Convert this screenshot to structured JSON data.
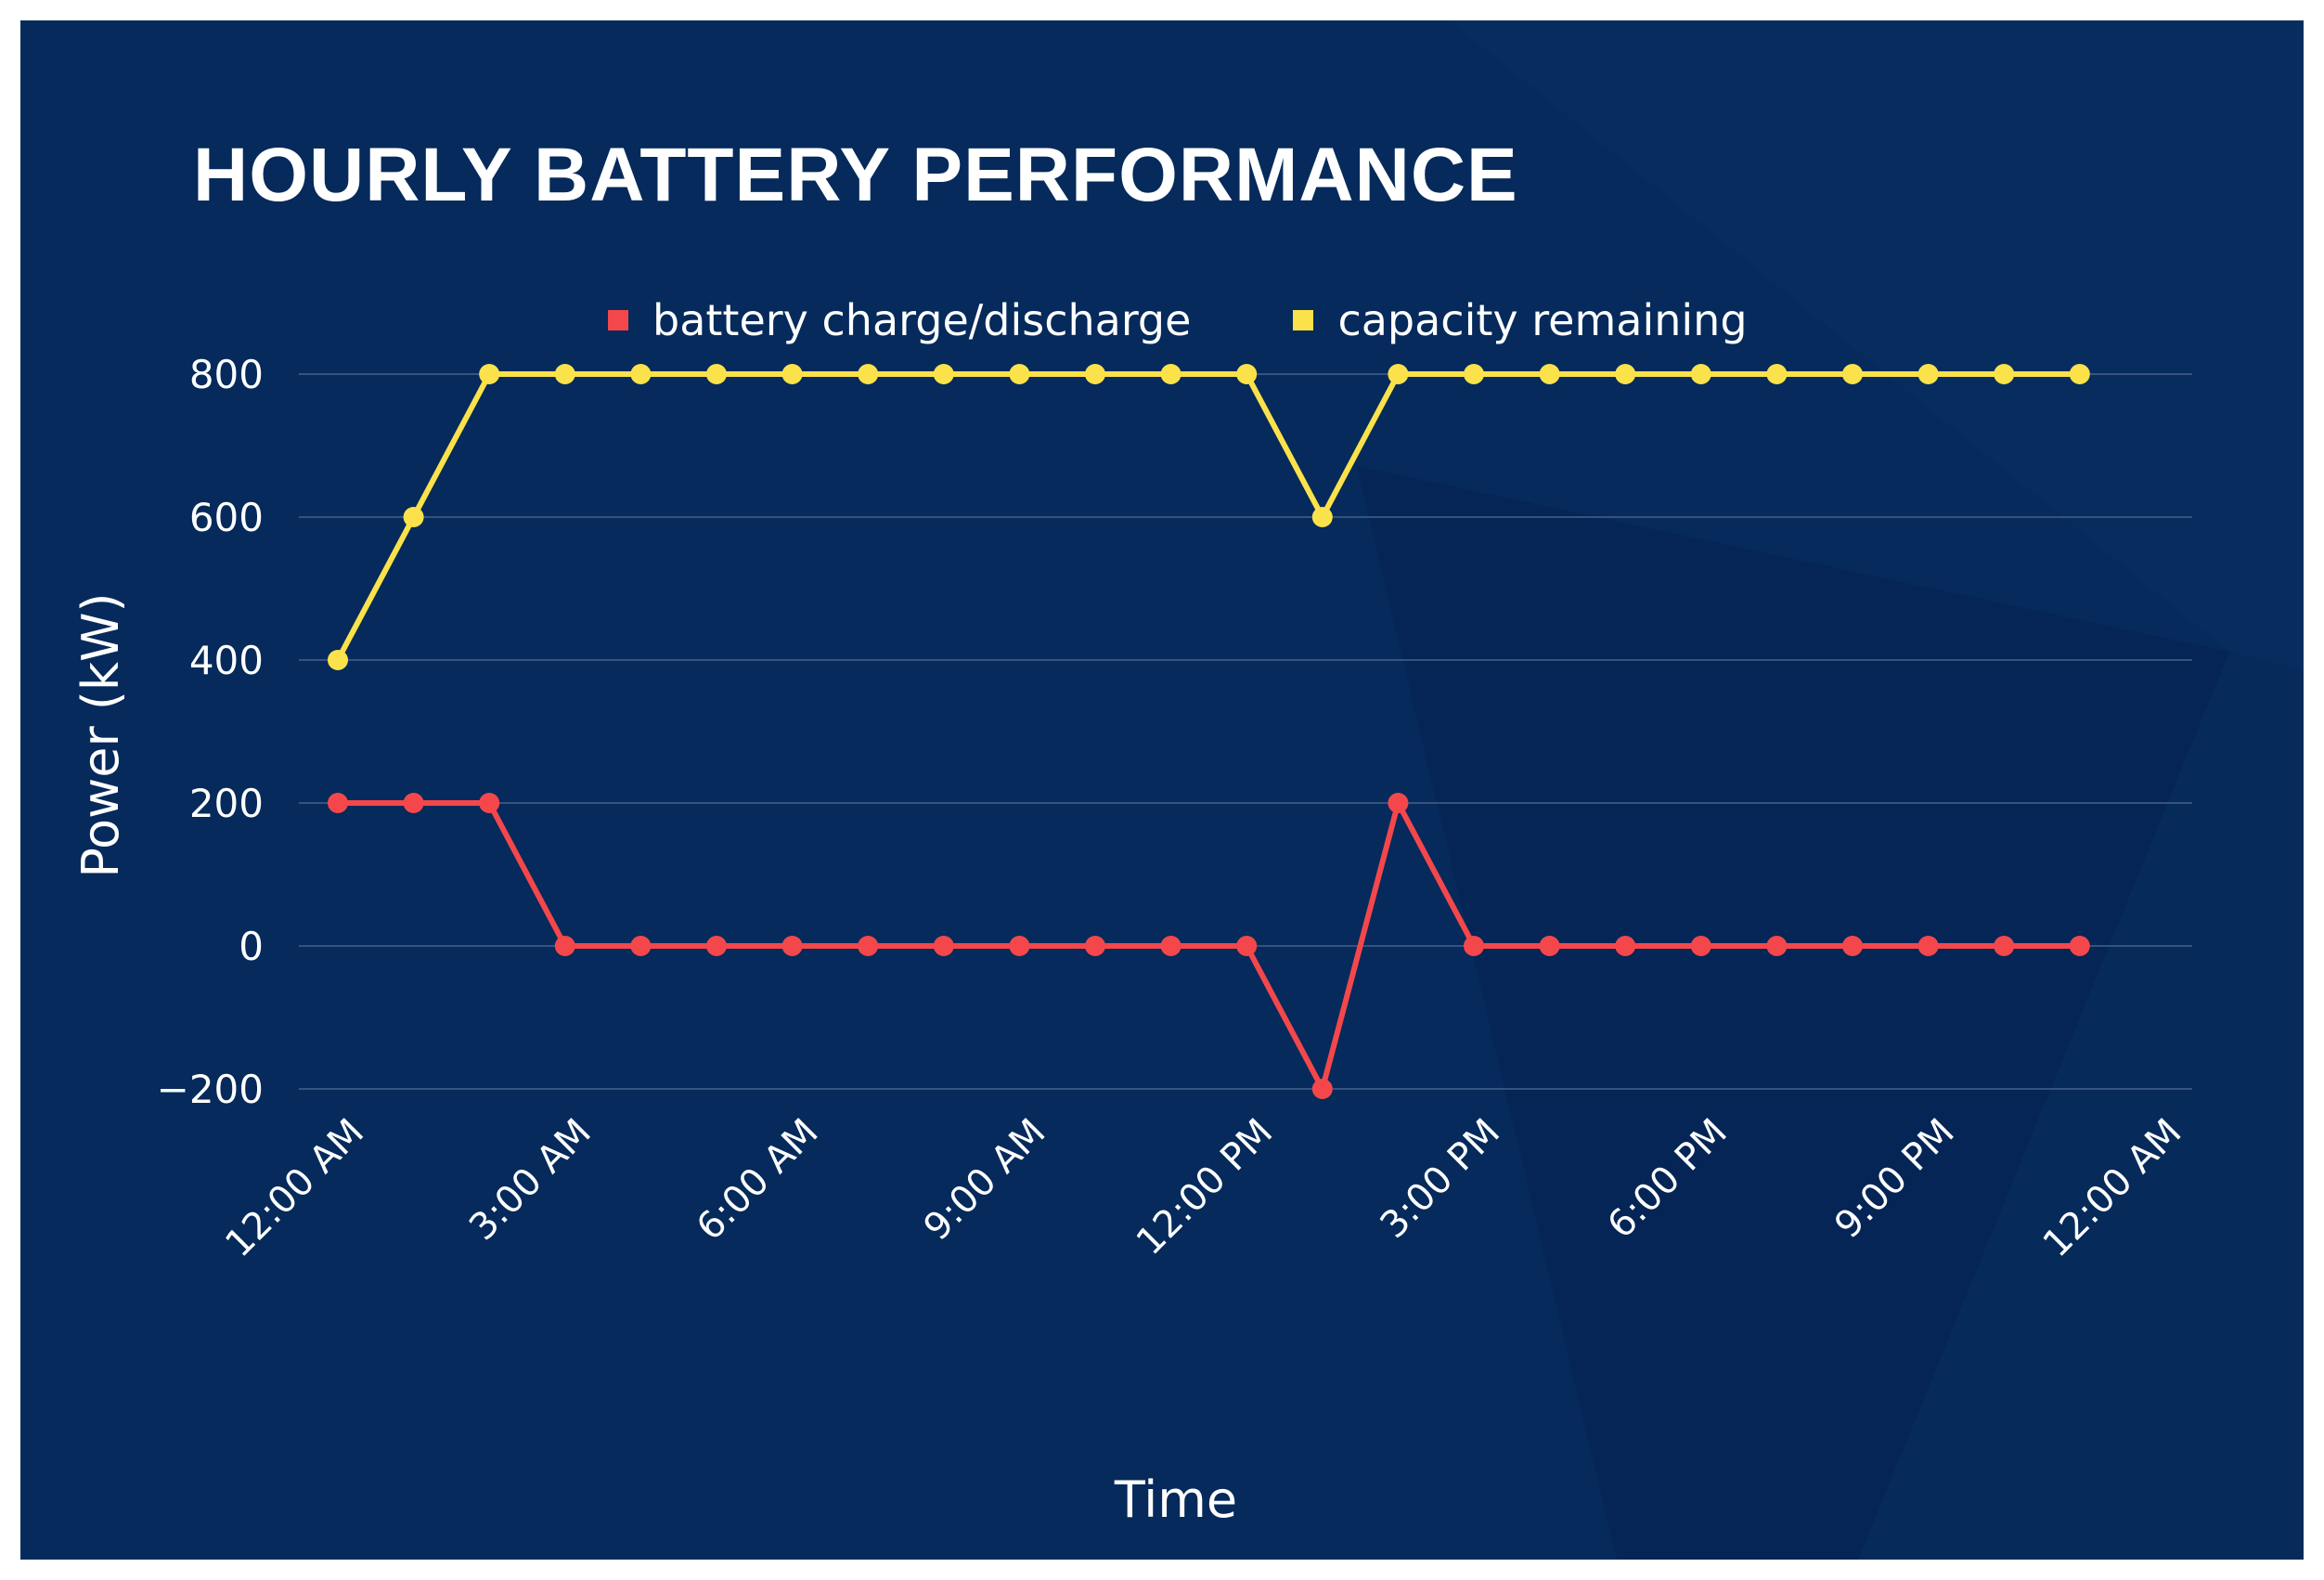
{
  "title": "HOURLY BATTERY PERFORMANCE",
  "legend": {
    "position": "top-center",
    "items": [
      {
        "label": "battery charge/discharge",
        "color": "#f4474b"
      },
      {
        "label": "capacity remaining",
        "color": "#fbe24a"
      }
    ]
  },
  "colors": {
    "background": "#052a5b",
    "gridline": "#35537e",
    "text": "#ffffff"
  },
  "chart_data": {
    "type": "line",
    "title": "HOURLY BATTERY PERFORMANCE",
    "xlabel": "Time",
    "ylabel": "Power (kW)",
    "ylim": [
      -200,
      800
    ],
    "yticks": [
      -200,
      0,
      200,
      400,
      600,
      800
    ],
    "xtick_labels": [
      "12:00 AM",
      "3:00 AM",
      "6:00 AM",
      "9:00 AM",
      "12:00 PM",
      "3:00 PM",
      "6:00 PM",
      "9:00 PM",
      "12:00 AM"
    ],
    "xtick_hours": [
      0,
      3,
      6,
      9,
      12,
      15,
      18,
      21,
      24
    ],
    "grid": true,
    "x_hours": [
      0,
      1,
      2,
      3,
      4,
      5,
      6,
      7,
      8,
      9,
      10,
      11,
      12,
      13,
      14,
      15,
      16,
      17,
      18,
      19,
      20,
      21,
      22,
      23
    ],
    "series": [
      {
        "name": "battery charge/discharge",
        "color": "#f4474b",
        "values": [
          200,
          200,
          200,
          0,
          0,
          0,
          0,
          0,
          0,
          0,
          0,
          0,
          0,
          -200,
          200,
          0,
          0,
          0,
          0,
          0,
          0,
          0,
          0,
          0
        ]
      },
      {
        "name": "capacity remaining",
        "color": "#fbe24a",
        "values": [
          400,
          600,
          800,
          800,
          800,
          800,
          800,
          800,
          800,
          800,
          800,
          800,
          800,
          600,
          800,
          800,
          800,
          800,
          800,
          800,
          800,
          800,
          800,
          800
        ]
      }
    ]
  }
}
